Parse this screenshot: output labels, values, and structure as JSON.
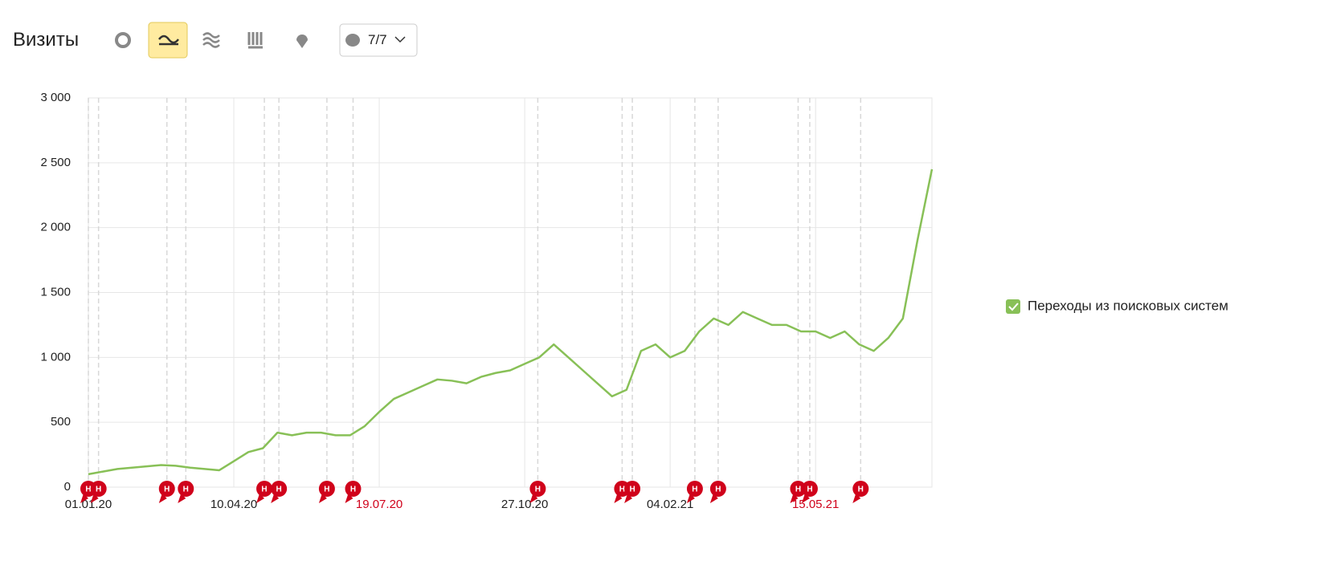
{
  "toolbar": {
    "title": "Визиты",
    "notes_button": "7/7"
  },
  "chart_data": {
    "type": "line",
    "x": [
      "2020-01-01",
      "2020-01-11",
      "2020-01-21",
      "2020-01-31",
      "2020-02-10",
      "2020-02-20",
      "2020-03-01",
      "2020-03-11",
      "2020-03-21",
      "2020-03-31",
      "2020-04-10",
      "2020-04-20",
      "2020-04-30",
      "2020-05-10",
      "2020-05-20",
      "2020-05-30",
      "2020-06-09",
      "2020-06-19",
      "2020-06-29",
      "2020-07-09",
      "2020-07-19",
      "2020-07-29",
      "2020-08-08",
      "2020-08-18",
      "2020-08-28",
      "2020-09-07",
      "2020-09-17",
      "2020-09-27",
      "2020-10-07",
      "2020-10-17",
      "2020-10-27",
      "2020-11-06",
      "2020-11-16",
      "2020-11-26",
      "2020-12-06",
      "2020-12-16",
      "2020-12-26",
      "2021-01-05",
      "2021-01-15",
      "2021-01-25",
      "2021-02-04",
      "2021-02-14",
      "2021-02-24",
      "2021-03-06",
      "2021-03-16",
      "2021-03-26",
      "2021-04-05",
      "2021-04-15",
      "2021-04-25",
      "2021-05-05",
      "2021-05-15",
      "2021-05-25",
      "2021-06-04",
      "2021-06-14",
      "2021-06-24",
      "2021-07-04",
      "2021-07-14",
      "2021-07-24",
      "2021-08-03"
    ],
    "series": [
      {
        "name": "Переходы из поисковых систем",
        "color": "#88c057",
        "values": [
          100,
          120,
          140,
          150,
          160,
          170,
          165,
          150,
          140,
          130,
          200,
          270,
          300,
          420,
          400,
          420,
          420,
          400,
          400,
          470,
          580,
          680,
          730,
          780,
          830,
          820,
          800,
          850,
          880,
          900,
          950,
          1000,
          1100,
          1000,
          900,
          800,
          700,
          750,
          1050,
          1100,
          1000,
          1050,
          1200,
          1300,
          1250,
          1350,
          1300,
          1250,
          1250,
          1200,
          1200,
          1150,
          1200,
          1100,
          1050,
          1150,
          1300,
          1900,
          2450
        ]
      }
    ],
    "xlim": [
      "2020-01-01",
      "2021-08-03"
    ],
    "xticks": [
      {
        "value": "2020-01-01",
        "label": "01.01.20"
      },
      {
        "value": "2020-04-10",
        "label": "10.04.20"
      },
      {
        "value": "2020-07-19",
        "label": "19.07.20"
      },
      {
        "value": "2020-10-27",
        "label": "27.10.20"
      },
      {
        "value": "2021-02-04",
        "label": "04.02.21"
      },
      {
        "value": "2021-05-15",
        "label": "15.05.21"
      }
    ],
    "ylim": [
      0,
      3000
    ],
    "yticks": [
      0,
      500,
      {
        "value": 1000,
        "label": "1 000"
      },
      {
        "value": 1500,
        "label": "1 500"
      },
      {
        "value": 2000,
        "label": "2 000"
      },
      {
        "value": 2500,
        "label": "2 500"
      },
      {
        "value": 3000,
        "label": "3 000"
      }
    ],
    "grid": true,
    "annotations": [
      {
        "x": "2020-01-01",
        "label": "Н"
      },
      {
        "x": "2020-01-08",
        "label": "Н"
      },
      {
        "x": "2020-02-24",
        "label": "Н"
      },
      {
        "x": "2020-03-08",
        "label": "Н"
      },
      {
        "x": "2020-05-01",
        "label": "Н"
      },
      {
        "x": "2020-05-11",
        "label": "Н"
      },
      {
        "x": "2020-06-13",
        "label": "Н"
      },
      {
        "x": "2020-07-01",
        "label": "Н"
      },
      {
        "x": "2020-11-05",
        "label": "Н"
      },
      {
        "x": "2021-01-02",
        "label": "Н"
      },
      {
        "x": "2021-01-09",
        "label": "Н"
      },
      {
        "x": "2021-02-21",
        "label": "Н"
      },
      {
        "x": "2021-03-09",
        "label": "Н"
      },
      {
        "x": "2021-05-03",
        "label": "Н"
      },
      {
        "x": "2021-05-11",
        "label": "Н"
      },
      {
        "x": "2021-06-15",
        "label": "Н"
      }
    ]
  }
}
